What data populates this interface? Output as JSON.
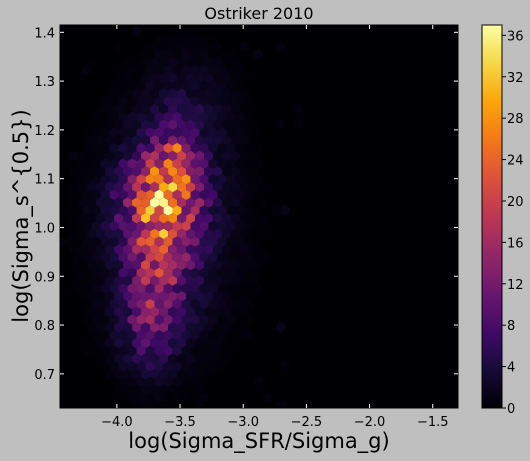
{
  "chart_data": {
    "type": "heatmap",
    "subtype": "hexbin",
    "title": "Ostriker 2010",
    "xlabel": "log(Sigma_SFR/Sigma_g)",
    "ylabel": "log(Sigma_s^{0.5})",
    "xlim": [
      -4.45,
      -1.3
    ],
    "ylim": [
      0.63,
      1.415
    ],
    "xticks": [
      -4.0,
      -3.5,
      -3.0,
      -2.5,
      -2.0,
      -1.5
    ],
    "xtick_labels": [
      "−4.0",
      "−3.5",
      "−3.0",
      "−2.5",
      "−2.0",
      "−1.5"
    ],
    "yticks": [
      0.7,
      0.8,
      0.9,
      1.0,
      1.1,
      1.2,
      1.3,
      1.4
    ],
    "ytick_labels": [
      "0.7",
      "0.8",
      "0.9",
      "1.0",
      "1.1",
      "1.2",
      "1.3",
      "1.4"
    ],
    "colorbar": {
      "range": [
        0,
        37
      ],
      "ticks": [
        0,
        4,
        8,
        12,
        16,
        20,
        24,
        28,
        32,
        36
      ],
      "tick_labels": [
        "0",
        "4",
        "8",
        "12",
        "16",
        "20",
        "24",
        "28",
        "32",
        "36"
      ],
      "colormap": "inferno"
    },
    "grid": false,
    "density_components": [
      {
        "x": -3.65,
        "y": 1.05,
        "sx": 0.2,
        "sy": 0.065,
        "peak": 20
      },
      {
        "x": -3.55,
        "y": 1.13,
        "sx": 0.13,
        "sy": 0.05,
        "peak": 9
      },
      {
        "x": -3.68,
        "y": 0.9,
        "sx": 0.17,
        "sy": 0.08,
        "peak": 10
      },
      {
        "x": -3.75,
        "y": 0.79,
        "sx": 0.15,
        "sy": 0.06,
        "peak": 6
      },
      {
        "x": -3.6,
        "y": 1.0,
        "sx": 0.32,
        "sy": 0.14,
        "peak": 5
      },
      {
        "x": -3.45,
        "y": 1.22,
        "sx": 0.22,
        "sy": 0.08,
        "peak": 3
      }
    ],
    "hotspots": [
      {
        "x": -3.72,
        "y": 1.05,
        "count": 37
      },
      {
        "x": -3.6,
        "y": 1.05,
        "count": 36
      },
      {
        "x": -3.62,
        "y": 1.09,
        "count": 30
      },
      {
        "x": -3.52,
        "y": 1.17,
        "count": 27
      },
      {
        "x": -3.7,
        "y": 1.1,
        "count": 26
      },
      {
        "x": -3.55,
        "y": 1.06,
        "count": 25
      }
    ],
    "colors": {
      "background": "#000004",
      "figure_background": "#bfbfbf",
      "axes_frame": "#000000"
    }
  }
}
